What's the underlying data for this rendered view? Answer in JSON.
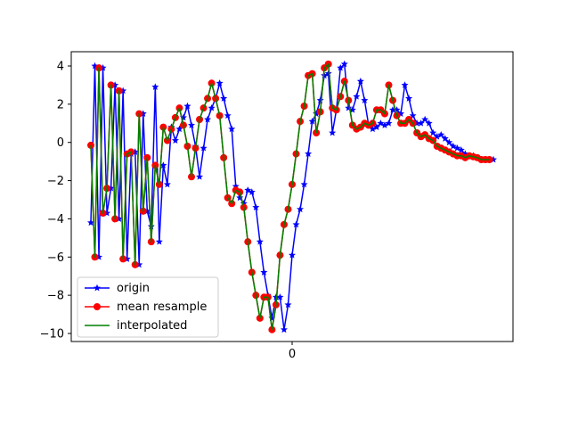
{
  "chart_data": {
    "type": "line",
    "x_tick_labels": [
      "0"
    ],
    "yticks": [
      4,
      2,
      0,
      -2,
      -4,
      -6,
      -8,
      -10
    ],
    "xlim": [
      0,
      1
    ],
    "ylim": [
      -10.5,
      4.7
    ],
    "legend_position": "lower-left",
    "series": [
      {
        "name": "origin",
        "color": "#0000ff",
        "marker": "star",
        "x": [
          0.0,
          0.01,
          0.02,
          0.03,
          0.04,
          0.05,
          0.06,
          0.07,
          0.08,
          0.09,
          0.1,
          0.11,
          0.12,
          0.13,
          0.14,
          0.15,
          0.16,
          0.17,
          0.18,
          0.19,
          0.2,
          0.21,
          0.22,
          0.23,
          0.24,
          0.25,
          0.26,
          0.27,
          0.28,
          0.29,
          0.3,
          0.31,
          0.32,
          0.33,
          0.34,
          0.35,
          0.36,
          0.37,
          0.38,
          0.39,
          0.4,
          0.41,
          0.42,
          0.43,
          0.44,
          0.45,
          0.46,
          0.47,
          0.48,
          0.49,
          0.5,
          0.51,
          0.52,
          0.53,
          0.54,
          0.55,
          0.56,
          0.57,
          0.58,
          0.59,
          0.6,
          0.61,
          0.62,
          0.63,
          0.64,
          0.65,
          0.66,
          0.67,
          0.68,
          0.69,
          0.7,
          0.71,
          0.72,
          0.73,
          0.74,
          0.75,
          0.76,
          0.77,
          0.78,
          0.79,
          0.8,
          0.81,
          0.82,
          0.83,
          0.84,
          0.85,
          0.86,
          0.87,
          0.88,
          0.89,
          0.9,
          0.91,
          0.92,
          0.93,
          0.94,
          0.95,
          0.96,
          0.97,
          0.98,
          0.99,
          1.0
        ],
        "y": [
          -4.2,
          4.0,
          -6.0,
          3.9,
          -3.7,
          -2.4,
          3.0,
          -4.0,
          2.7,
          -6.1,
          -0.6,
          -0.5,
          -6.4,
          1.5,
          -3.6,
          -4.4,
          2.9,
          -5.2,
          -1.2,
          -2.2,
          0.8,
          0.1,
          0.7,
          1.3,
          1.9,
          0.9,
          -0.2,
          -1.8,
          -0.3,
          1.2,
          1.8,
          2.3,
          3.1,
          2.3,
          1.4,
          0.7,
          -2.3,
          -2.9,
          -3.2,
          -2.5,
          -2.6,
          -3.4,
          -5.2,
          -6.8,
          -8.0,
          -9.2,
          -8.1,
          -8.1,
          -9.8,
          -8.5,
          -5.9,
          -4.3,
          -3.5,
          -2.2,
          -0.6,
          1.1,
          1.5,
          2.2,
          3.5,
          3.6,
          0.5,
          1.7,
          3.9,
          4.1,
          1.8,
          1.7,
          2.4,
          3.2,
          2.2,
          0.9,
          0.7,
          0.8,
          1.0,
          0.9,
          1.0,
          1.7,
          1.7,
          1.5,
          3.0,
          2.3,
          1.4,
          1.0,
          1.0,
          1.2,
          1.0,
          0.5,
          0.3,
          0.4,
          0.2,
          0.0,
          -0.2,
          -0.3,
          -0.4,
          -0.6,
          -0.7,
          -0.7,
          -0.8,
          -0.9,
          -0.9,
          -0.9,
          -0.9
        ]
      },
      {
        "name": "mean resample",
        "color": "#ff0000",
        "marker": "circle",
        "x": [
          0.0,
          0.01,
          0.02,
          0.03,
          0.04,
          0.05,
          0.06,
          0.07,
          0.08,
          0.09,
          0.1,
          0.11,
          0.12,
          0.13,
          0.14,
          0.15,
          0.16,
          0.17,
          0.18,
          0.19,
          0.2,
          0.21,
          0.22,
          0.23,
          0.24,
          0.25,
          0.26,
          0.27,
          0.28,
          0.29,
          0.3,
          0.31,
          0.32,
          0.33,
          0.34,
          0.35,
          0.36,
          0.37,
          0.38,
          0.39,
          0.4,
          0.41,
          0.42,
          0.43,
          0.44,
          0.45,
          0.46,
          0.47,
          0.48,
          0.49,
          0.5,
          0.51,
          0.52,
          0.53,
          0.54,
          0.55,
          0.56,
          0.57,
          0.58,
          0.59,
          0.6,
          0.61,
          0.62,
          0.63,
          0.64,
          0.65,
          0.66,
          0.67,
          0.68,
          0.69,
          0.7,
          0.71,
          0.72,
          0.73,
          0.74,
          0.75,
          0.76,
          0.77,
          0.78,
          0.79,
          0.8,
          0.81,
          0.82,
          0.83,
          0.84,
          0.85,
          0.86,
          0.87,
          0.88,
          0.89,
          0.9,
          0.91,
          0.92,
          0.93,
          0.94,
          0.95,
          0.96,
          0.97,
          0.98,
          0.99
        ],
        "y": [
          -0.15,
          -6.0,
          3.9,
          -3.7,
          -2.4,
          3.0,
          -4.0,
          2.7,
          -6.1,
          -0.6,
          -0.5,
          -6.4,
          1.5,
          -3.6,
          -0.8,
          -5.2,
          -1.2,
          -2.2,
          0.8,
          0.1,
          0.7,
          1.3,
          1.8,
          0.9,
          -0.2,
          -1.8,
          -0.3,
          1.2,
          1.8,
          2.3,
          3.1,
          2.3,
          1.4,
          -0.8,
          -2.9,
          -3.2,
          -2.5,
          -2.6,
          -3.4,
          -5.2,
          -6.8,
          -8.0,
          -9.2,
          -8.1,
          -8.1,
          -9.8,
          -8.5,
          -5.9,
          -4.3,
          -3.5,
          -2.2,
          -0.6,
          1.1,
          1.9,
          3.5,
          3.6,
          0.5,
          1.6,
          3.9,
          4.1,
          1.8,
          1.7,
          2.4,
          3.2,
          2.2,
          0.9,
          0.7,
          0.8,
          1.0,
          0.9,
          1.0,
          1.7,
          1.7,
          1.5,
          3.0,
          2.2,
          1.4,
          1.0,
          1.0,
          1.2,
          1.0,
          0.5,
          0.3,
          0.4,
          0.2,
          0.1,
          -0.2,
          -0.3,
          -0.4,
          -0.5,
          -0.6,
          -0.7,
          -0.7,
          -0.8,
          -0.7,
          -0.75,
          -0.8,
          -0.9,
          -0.9,
          -0.9
        ]
      },
      {
        "name": "interpolated",
        "color": "#008000",
        "marker": "none",
        "x": [
          0.0,
          0.01,
          0.02,
          0.03,
          0.04,
          0.05,
          0.06,
          0.07,
          0.08,
          0.09,
          0.1,
          0.11,
          0.12,
          0.13,
          0.14,
          0.15,
          0.16,
          0.17,
          0.18,
          0.19,
          0.2,
          0.21,
          0.22,
          0.23,
          0.24,
          0.25,
          0.26,
          0.27,
          0.28,
          0.29,
          0.3,
          0.31,
          0.32,
          0.33,
          0.34,
          0.35,
          0.36,
          0.37,
          0.38,
          0.39,
          0.4,
          0.41,
          0.42,
          0.43,
          0.44,
          0.45,
          0.46,
          0.47,
          0.48,
          0.49,
          0.5,
          0.51,
          0.52,
          0.53,
          0.54,
          0.55,
          0.56,
          0.57,
          0.58,
          0.59,
          0.6,
          0.61,
          0.62,
          0.63,
          0.64,
          0.65,
          0.66,
          0.67,
          0.68,
          0.69,
          0.7,
          0.71,
          0.72,
          0.73,
          0.74,
          0.75,
          0.76,
          0.77,
          0.78,
          0.79,
          0.8,
          0.81,
          0.82,
          0.83,
          0.84,
          0.85,
          0.86,
          0.87,
          0.88,
          0.89,
          0.9,
          0.91,
          0.92,
          0.93,
          0.94,
          0.95,
          0.96,
          0.97,
          0.98,
          0.99
        ],
        "y": [
          -0.15,
          -6.0,
          3.9,
          -3.7,
          -2.4,
          3.0,
          -4.0,
          2.7,
          -6.1,
          -0.6,
          -0.5,
          -6.4,
          1.5,
          -3.6,
          -0.8,
          -5.2,
          -1.2,
          -2.2,
          0.8,
          0.1,
          0.7,
          1.3,
          1.8,
          0.9,
          -0.2,
          -1.8,
          -0.3,
          1.2,
          1.8,
          2.3,
          3.1,
          2.3,
          1.4,
          -0.8,
          -2.9,
          -3.2,
          -2.5,
          -2.6,
          -3.4,
          -5.2,
          -6.8,
          -8.0,
          -9.2,
          -8.1,
          -8.1,
          -9.8,
          -8.5,
          -5.9,
          -4.3,
          -3.5,
          -2.2,
          -0.6,
          1.1,
          1.9,
          3.5,
          3.6,
          0.5,
          1.6,
          3.9,
          4.1,
          1.8,
          1.7,
          2.4,
          3.2,
          2.2,
          0.9,
          0.7,
          0.8,
          1.0,
          0.9,
          1.0,
          1.7,
          1.7,
          1.5,
          3.0,
          2.2,
          1.4,
          1.0,
          1.0,
          1.2,
          1.0,
          0.5,
          0.3,
          0.4,
          0.2,
          0.1,
          -0.2,
          -0.3,
          -0.4,
          -0.5,
          -0.6,
          -0.7,
          -0.7,
          -0.8,
          -0.7,
          -0.75,
          -0.8,
          -0.9,
          -0.9,
          -0.9
        ]
      }
    ]
  }
}
